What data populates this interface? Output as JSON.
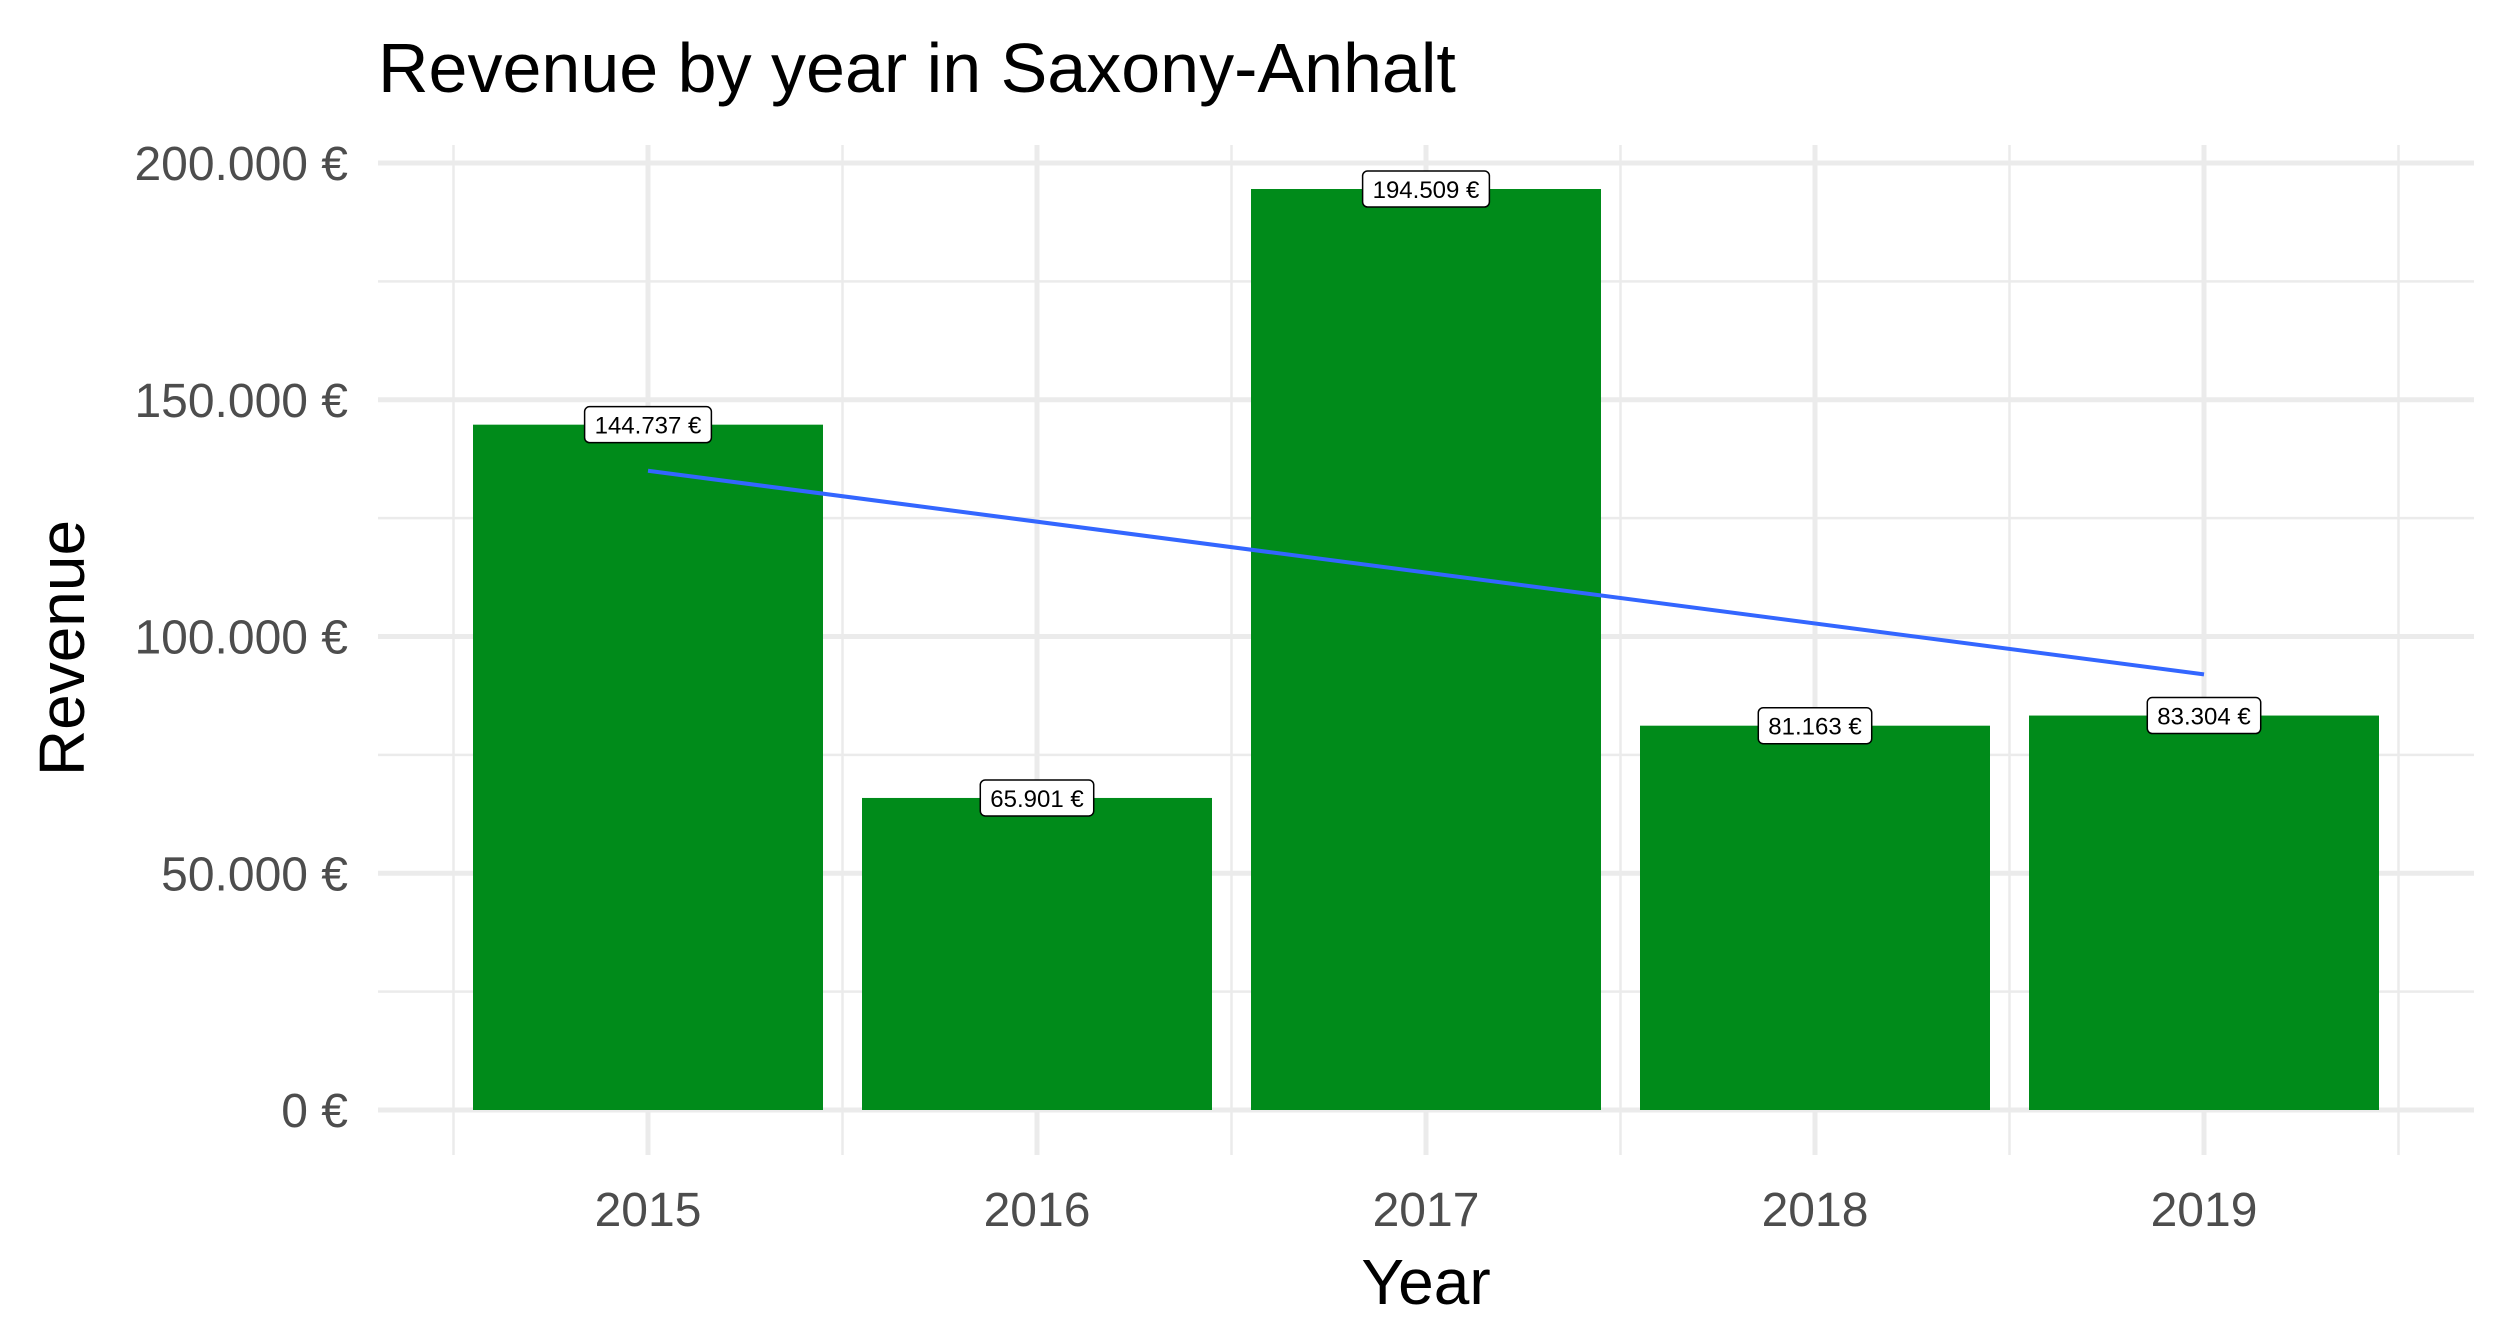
{
  "chart_data": {
    "type": "bar",
    "title": "Revenue by year in Saxony-Anhalt",
    "xlabel": "Year",
    "ylabel": "Revenue",
    "categories": [
      "2015",
      "2016",
      "2017",
      "2018",
      "2019"
    ],
    "values": [
      144737,
      65901,
      194509,
      81163,
      83304
    ],
    "value_labels": [
      "144.737 €",
      "65.901 €",
      "194.509 €",
      "81.163 €",
      "83.304 €"
    ],
    "ylim": [
      0,
      200000
    ],
    "y_ticks": [
      0,
      50000,
      100000,
      150000,
      200000
    ],
    "y_tick_labels": [
      "0 €",
      "50.000 €",
      "100.000 €",
      "150.000 €",
      "200.000 €"
    ],
    "trend_line": {
      "type": "linear",
      "start": {
        "x": "2015",
        "y": 135000
      },
      "end": {
        "x": "2019",
        "y": 92000
      }
    },
    "grid": true,
    "legend": "none",
    "colors": {
      "bar": "#008b1a",
      "trend": "#3366ff",
      "grid": "#ebebeb"
    }
  }
}
